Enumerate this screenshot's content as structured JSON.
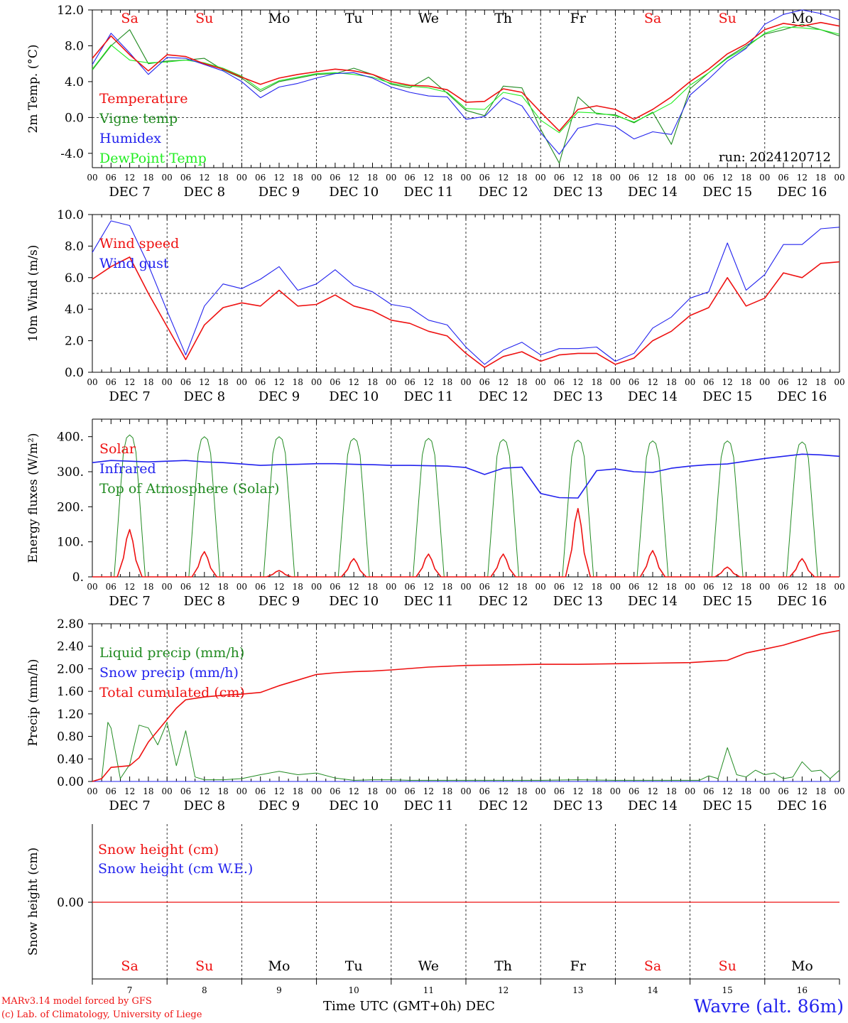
{
  "run_label": "run: 2024120712",
  "days": [
    "Sa",
    "Su",
    "Mo",
    "Tu",
    "We",
    "Th",
    "Fr",
    "Sa",
    "Su",
    "Mo"
  ],
  "weekend_color": "#ee1111",
  "weekday_color": "#000000",
  "dates": [
    "DEC  7",
    "DEC  8",
    "DEC  9",
    "DEC 10",
    "DEC 11",
    "DEC 12",
    "DEC 13",
    "DEC 14",
    "DEC 15",
    "DEC 16"
  ],
  "date_numbers": [
    "7",
    "8",
    "9",
    "10",
    "11",
    "12",
    "13",
    "14",
    "15",
    "16"
  ],
  "hour_ticks": [
    "00",
    "06",
    "12",
    "18"
  ],
  "footer": {
    "credit_line1": "MARv3.14 model forced by GFS",
    "credit_line2": "(c) Lab. of Climatology, University of Liege",
    "time_axis_label": "Time UTC (GMT+0h)",
    "time_axis_month": "DEC",
    "station": "Wavre (alt. 86m)"
  },
  "chart_data": [
    {
      "type": "line",
      "ylabel": "2m Temp. (°C)",
      "ylim": [
        -5.6,
        12.0
      ],
      "yticks": [
        -4.0,
        0.0,
        4.0,
        8.0,
        12.0
      ],
      "ytick_labels": [
        "-4.0",
        "0.0",
        "4.0",
        "8.0",
        "12.0"
      ],
      "x": [
        0,
        6,
        12,
        18,
        24,
        30,
        36,
        42,
        48,
        54,
        60,
        66,
        72,
        78,
        84,
        90,
        96,
        102,
        108,
        114,
        120,
        126,
        132,
        138,
        144,
        150,
        156,
        162,
        168,
        174,
        180,
        186,
        192,
        198,
        204,
        210,
        216,
        222,
        228,
        234,
        240
      ],
      "series": [
        {
          "name": "Temperature",
          "color": "#ee1111",
          "values": [
            6.6,
            9.1,
            7.0,
            5.2,
            7.0,
            6.8,
            6.0,
            5.4,
            4.5,
            3.7,
            4.4,
            4.8,
            5.1,
            5.4,
            5.2,
            4.8,
            4.0,
            3.6,
            3.5,
            3.1,
            1.7,
            1.8,
            3.2,
            2.8,
            0.6,
            -1.5,
            0.9,
            1.3,
            0.9,
            -0.2,
            0.9,
            2.3,
            4.0,
            5.4,
            7.1,
            8.2,
            9.8,
            10.5,
            10.2,
            10.6,
            10.2
          ]
        },
        {
          "name": "Vigne temp",
          "color": "#228b22",
          "values": [
            5.3,
            8.0,
            9.8,
            6.0,
            6.3,
            6.4,
            6.6,
            5.3,
            4.4,
            2.9,
            4.0,
            4.4,
            4.8,
            4.9,
            5.5,
            4.8,
            3.7,
            3.3,
            4.5,
            2.7,
            0.8,
            0.2,
            3.5,
            3.3,
            -1.3,
            -5.1,
            2.3,
            0.4,
            0.3,
            -0.6,
            0.6,
            -3.0,
            3.2,
            5.0,
            6.7,
            8.0,
            9.3,
            9.8,
            10.4,
            9.8,
            9.1
          ]
        },
        {
          "name": "Humidex",
          "color": "#2222ee",
          "values": [
            5.9,
            9.4,
            7.2,
            4.8,
            6.7,
            6.6,
            5.9,
            5.2,
            4.0,
            2.2,
            3.4,
            3.8,
            4.4,
            4.9,
            5.0,
            4.4,
            3.4,
            2.8,
            2.4,
            2.3,
            -0.2,
            0.1,
            2.2,
            1.3,
            -1.7,
            -4.1,
            -1.2,
            -0.7,
            -1.0,
            -2.4,
            -1.6,
            -1.9,
            2.5,
            4.3,
            6.3,
            7.7,
            10.4,
            11.5,
            12.0,
            11.6,
            10.9
          ]
        },
        {
          "name": "DewPoint Temp",
          "color": "#22ee22",
          "values": [
            5.4,
            8.1,
            6.4,
            6.1,
            6.2,
            6.4,
            6.1,
            5.5,
            4.6,
            3.1,
            4.1,
            4.5,
            4.9,
            5.0,
            4.8,
            4.5,
            3.8,
            3.5,
            3.3,
            2.8,
            1.0,
            0.9,
            2.8,
            2.4,
            -0.3,
            -1.7,
            0.6,
            0.5,
            0.2,
            -0.5,
            0.5,
            1.6,
            3.6,
            5.0,
            6.6,
            7.8,
            9.4,
            10.1,
            10.0,
            9.8,
            9.3
          ]
        }
      ],
      "reference_line": 0.0,
      "legend": "top-left"
    },
    {
      "type": "line",
      "ylabel": "10m Wind (m/s)",
      "ylim": [
        0,
        10
      ],
      "yticks": [
        0,
        2,
        4,
        6,
        8,
        10
      ],
      "ytick_labels": [
        "0.0",
        "2.0",
        "4.0",
        "6.0",
        "8.0",
        "10.0"
      ],
      "x": [
        0,
        6,
        12,
        18,
        24,
        30,
        36,
        42,
        48,
        54,
        60,
        66,
        72,
        78,
        84,
        90,
        96,
        102,
        108,
        114,
        120,
        126,
        132,
        138,
        144,
        150,
        156,
        162,
        168,
        174,
        180,
        186,
        192,
        198,
        204,
        210,
        216,
        222,
        228,
        234,
        240
      ],
      "series": [
        {
          "name": "Wind speed",
          "color": "#ee1111",
          "values": [
            5.9,
            6.7,
            7.3,
            5.0,
            2.9,
            0.8,
            3.0,
            4.1,
            4.4,
            4.2,
            5.2,
            4.2,
            4.3,
            4.9,
            4.2,
            3.9,
            3.3,
            3.1,
            2.6,
            2.3,
            1.2,
            0.3,
            1.0,
            1.3,
            0.7,
            1.1,
            1.2,
            1.2,
            0.5,
            0.9,
            2.0,
            2.6,
            3.6,
            4.1,
            6.0,
            4.2,
            4.7,
            6.3,
            6.0,
            6.9,
            7.0
          ]
        },
        {
          "name": "Wind gust",
          "color": "#2222ee",
          "values": [
            7.6,
            9.6,
            9.3,
            6.8,
            3.9,
            1.1,
            4.2,
            5.6,
            5.3,
            5.9,
            6.7,
            5.2,
            5.6,
            6.5,
            5.5,
            5.1,
            4.3,
            4.1,
            3.3,
            3.0,
            1.6,
            0.5,
            1.4,
            1.9,
            1.1,
            1.5,
            1.5,
            1.6,
            0.7,
            1.2,
            2.8,
            3.5,
            4.7,
            5.1,
            8.2,
            5.2,
            6.2,
            8.1,
            8.1,
            9.1,
            9.2
          ]
        }
      ],
      "reference_line": 5.0,
      "legend": "top-left"
    },
    {
      "type": "line",
      "ylabel": "Energy fluxes (W/m²)",
      "ylim": [
        0,
        450
      ],
      "yticks": [
        0,
        100,
        200,
        300,
        400
      ],
      "ytick_labels": [
        "0.",
        "100.",
        "200.",
        "300.",
        "400."
      ],
      "series": [
        {
          "name": "Solar",
          "color": "#ee1111",
          "daily_peaks": [
            135,
            72,
            18,
            52,
            65,
            65,
            195,
            75,
            28,
            52
          ]
        },
        {
          "name": "Infrared",
          "color": "#2222ee",
          "x": [
            0,
            6,
            12,
            18,
            24,
            30,
            36,
            42,
            48,
            54,
            60,
            66,
            72,
            78,
            84,
            90,
            96,
            102,
            108,
            114,
            120,
            126,
            132,
            138,
            144,
            150,
            156,
            162,
            168,
            174,
            180,
            186,
            192,
            198,
            204,
            210,
            216,
            222,
            228,
            234,
            240
          ],
          "values": [
            326,
            332,
            330,
            328,
            330,
            332,
            328,
            326,
            322,
            318,
            320,
            321,
            323,
            323,
            321,
            320,
            318,
            318,
            317,
            316,
            312,
            292,
            310,
            313,
            238,
            226,
            225,
            303,
            308,
            300,
            298,
            310,
            316,
            320,
            322,
            330,
            338,
            344,
            350,
            348,
            344
          ]
        },
        {
          "name": "Top of Atmosphere (Solar)",
          "color": "#228b22",
          "daily_peaks": [
            405,
            400,
            400,
            395,
            395,
            392,
            390,
            388,
            388,
            385
          ]
        }
      ],
      "legend": "top-left"
    },
    {
      "type": "line",
      "ylabel": "Precip (mm/h)",
      "ylim": [
        0,
        2.8
      ],
      "yticks": [
        0,
        0.4,
        0.8,
        1.2,
        1.6,
        2.0,
        2.4,
        2.8
      ],
      "ytick_labels": [
        "0.00",
        "0.40",
        "0.80",
        "1.20",
        "1.60",
        "2.00",
        "2.40",
        "2.80"
      ],
      "series": [
        {
          "name": "Liquid precip (mm/h)",
          "color": "#228b22",
          "x": [
            0,
            3,
            5,
            6,
            9,
            12,
            15,
            18,
            21,
            24,
            27,
            30,
            33,
            36,
            42,
            48,
            54,
            60,
            66,
            72,
            78,
            84,
            90,
            96,
            102,
            108,
            120,
            132,
            144,
            156,
            168,
            180,
            192,
            195,
            198,
            201,
            204,
            207,
            210,
            213,
            216,
            219,
            222,
            225,
            228,
            231,
            234,
            237,
            240
          ],
          "values": [
            0,
            0.05,
            1.05,
            0.95,
            0.05,
            0.3,
            1.0,
            0.95,
            0.65,
            1.05,
            0.28,
            0.9,
            0.08,
            0.03,
            0.03,
            0.05,
            0.12,
            0.18,
            0.12,
            0.15,
            0.06,
            0.02,
            0.03,
            0.03,
            0.02,
            0.02,
            0.02,
            0.02,
            0.02,
            0.03,
            0.02,
            0.02,
            0.02,
            0.02,
            0.1,
            0.05,
            0.6,
            0.12,
            0.08,
            0.2,
            0.12,
            0.15,
            0.05,
            0.08,
            0.35,
            0.18,
            0.2,
            0.05,
            0.2
          ]
        },
        {
          "name": "Snow precip (mm/h)",
          "color": "#2222ee",
          "x": [
            0,
            240
          ],
          "values": [
            0,
            0
          ]
        },
        {
          "name": "Total cumulated (cm)",
          "color": "#ee1111",
          "x": [
            0,
            3,
            6,
            12,
            15,
            18,
            21,
            24,
            27,
            30,
            36,
            42,
            48,
            54,
            60,
            66,
            72,
            78,
            84,
            90,
            96,
            108,
            120,
            132,
            144,
            156,
            168,
            180,
            192,
            198,
            204,
            210,
            216,
            222,
            228,
            234,
            240
          ],
          "values": [
            0,
            0.05,
            0.25,
            0.28,
            0.42,
            0.7,
            0.9,
            1.1,
            1.3,
            1.45,
            1.5,
            1.53,
            1.55,
            1.58,
            1.7,
            1.8,
            1.9,
            1.93,
            1.95,
            1.96,
            1.98,
            2.03,
            2.06,
            2.07,
            2.08,
            2.08,
            2.09,
            2.1,
            2.11,
            2.13,
            2.15,
            2.28,
            2.35,
            2.42,
            2.52,
            2.62,
            2.68
          ]
        }
      ],
      "legend": "top-left"
    },
    {
      "type": "line",
      "ylabel": "Snow height (cm)",
      "yticks": [
        0
      ],
      "ytick_labels": [
        "0.00"
      ],
      "series": [
        {
          "name": "Snow height (cm)",
          "color": "#ee1111",
          "x": [
            0,
            240
          ],
          "values": [
            0,
            0
          ]
        },
        {
          "name": "Snow height (cm W.E.)",
          "color": "#2222ee",
          "x": [
            0,
            240
          ],
          "values": [
            0,
            0
          ]
        }
      ],
      "legend": "top-left"
    }
  ]
}
